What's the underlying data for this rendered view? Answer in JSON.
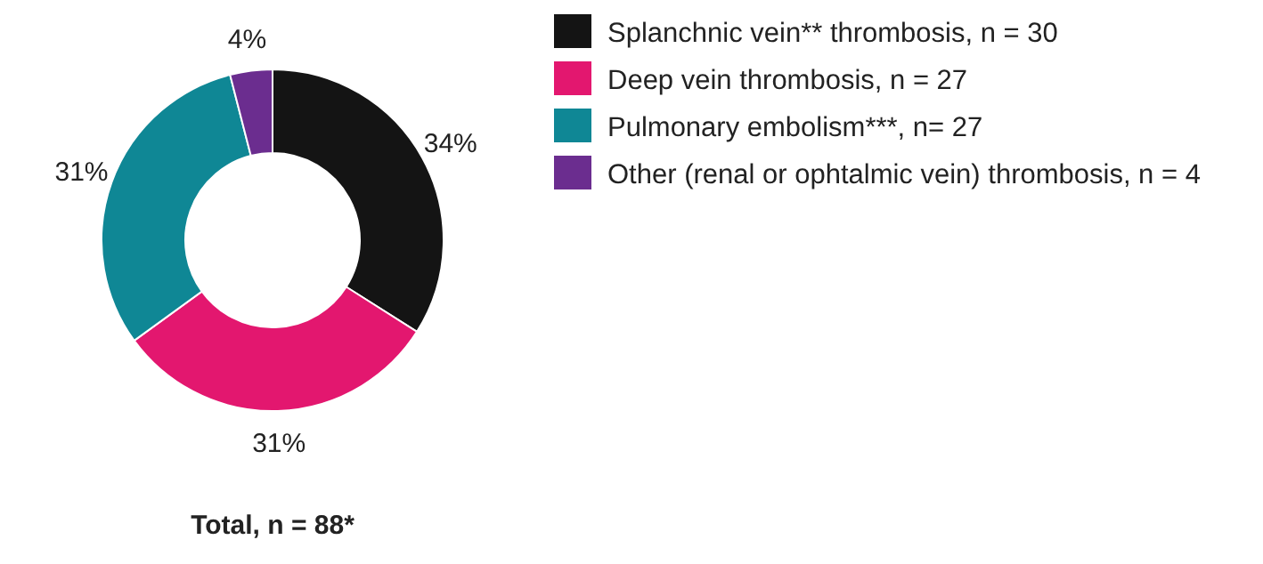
{
  "chart_data": {
    "type": "donut",
    "categories": [
      "Splanchnic vein** thrombosis, n = 30",
      "Deep vein thrombosis, n = 27",
      "Pulmonary embolism***, n= 27",
      "Other (renal or ophtalmic vein) thrombosis, n = 4"
    ],
    "values": [
      34,
      31,
      31,
      4
    ],
    "colors": [
      "#141414",
      "#e3176f",
      "#0f8795",
      "#6b2d8f"
    ],
    "value_labels": [
      "34%",
      "31%",
      "31%",
      "4%"
    ],
    "legend": "right",
    "annotations": [
      "Total, n = 88*"
    ]
  }
}
